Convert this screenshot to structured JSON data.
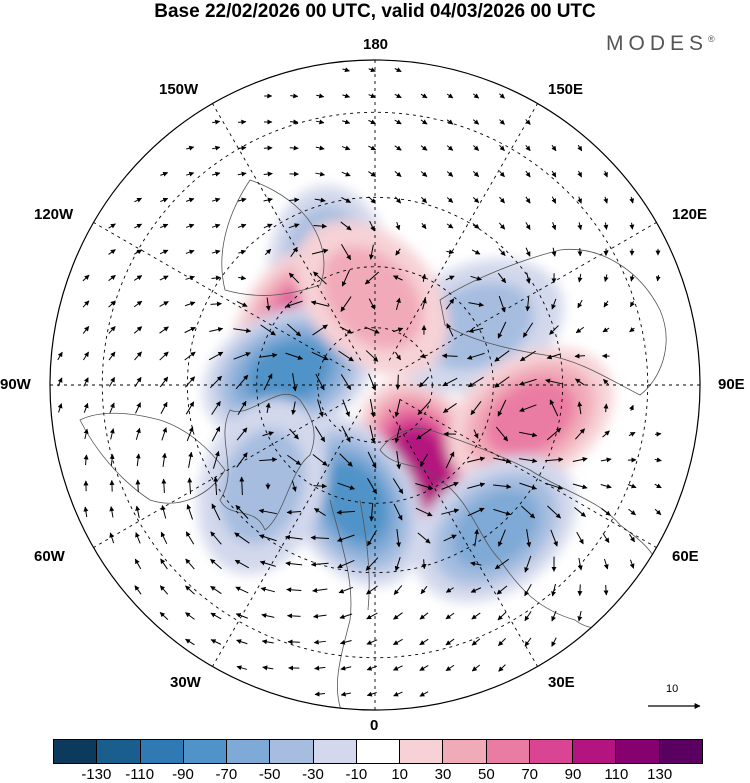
{
  "header": {
    "title": "Base 22/02/2026 00 UTC, valid 04/03/2026 00 UTC",
    "brand": "MODES",
    "brand_mark": "®"
  },
  "map": {
    "projection": "north-polar-stereographic",
    "field": "anomaly",
    "longitude_labels": {
      "n180": "180",
      "w150": "150W",
      "e150": "150E",
      "w120": "120W",
      "e120": "120E",
      "w90": "90W",
      "e90": "90E",
      "w60": "60W",
      "e60": "60E",
      "w30": "30W",
      "e30": "30E",
      "zero": "0"
    },
    "anomaly_centers": [
      {
        "lon": -158,
        "lat": 50,
        "value": -70,
        "sign": "negative"
      },
      {
        "lon": -128,
        "lat": 58,
        "value": 90,
        "sign": "positive"
      },
      {
        "lon": -98,
        "lat": 60,
        "value": -90,
        "sign": "negative"
      },
      {
        "lon": 30,
        "lat": 58,
        "value": 110,
        "sign": "positive"
      },
      {
        "lon": -10,
        "lat": 50,
        "value": -90,
        "sign": "negative"
      },
      {
        "lon": 120,
        "lat": 50,
        "value": -50,
        "sign": "negative"
      },
      {
        "lon": 78,
        "lat": 38,
        "value": 70,
        "sign": "positive"
      },
      {
        "lon": 40,
        "lat": 30,
        "value": -70,
        "sign": "negative"
      },
      {
        "lon": -48,
        "lat": 40,
        "value": -50,
        "sign": "negative"
      },
      {
        "lon": -178,
        "lat": 60,
        "value": 50,
        "sign": "positive"
      }
    ],
    "reference_vector_label": "10"
  },
  "colorbar": {
    "ticks": [
      "-130",
      "-110",
      "-90",
      "-70",
      "-50",
      "-30",
      "-10",
      "10",
      "30",
      "50",
      "70",
      "90",
      "110",
      "130"
    ],
    "colors": [
      "#0b3a5c",
      "#1a5e8e",
      "#2f79b4",
      "#4f93c8",
      "#7fa9d6",
      "#a6bde0",
      "#d3d8ec",
      "#ffffff",
      "#f6d2d6",
      "#f1aab8",
      "#ea7ca3",
      "#d94493",
      "#b4147f",
      "#86006f",
      "#5a0060"
    ]
  }
}
